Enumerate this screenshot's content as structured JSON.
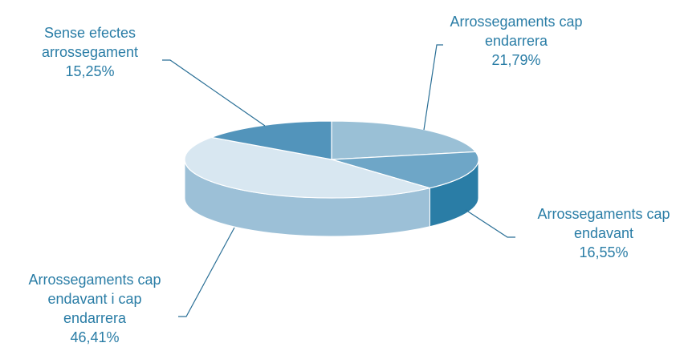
{
  "chart_data": {
    "type": "pie",
    "style": "3d",
    "title": "",
    "legend": "none",
    "label_color": "#2a7da6",
    "slices": [
      {
        "label_lines": [
          "Arrossegaments cap",
          "endarrera"
        ],
        "value_label": "21,79%",
        "value": 21.79,
        "top_color": "#9ac0d6",
        "side_color": "#7fa9c4"
      },
      {
        "label_lines": [
          "Arrossegaments cap",
          "endavant"
        ],
        "value_label": "16,55%",
        "value": 16.55,
        "top_color": "#6ea6c7",
        "side_color": "#2a7da6"
      },
      {
        "label_lines": [
          "Arrossegaments cap",
          "endavant i cap",
          "endarrera"
        ],
        "value_label": "46,41%",
        "value": 46.41,
        "top_color": "#d8e7f1",
        "side_color": "#9cc0d7"
      },
      {
        "label_lines": [
          "Sense efectes",
          "arrossegament"
        ],
        "value_label": "15,25%",
        "value": 15.25,
        "top_color": "#5294bb",
        "side_color": "#3f7ea6"
      }
    ]
  }
}
